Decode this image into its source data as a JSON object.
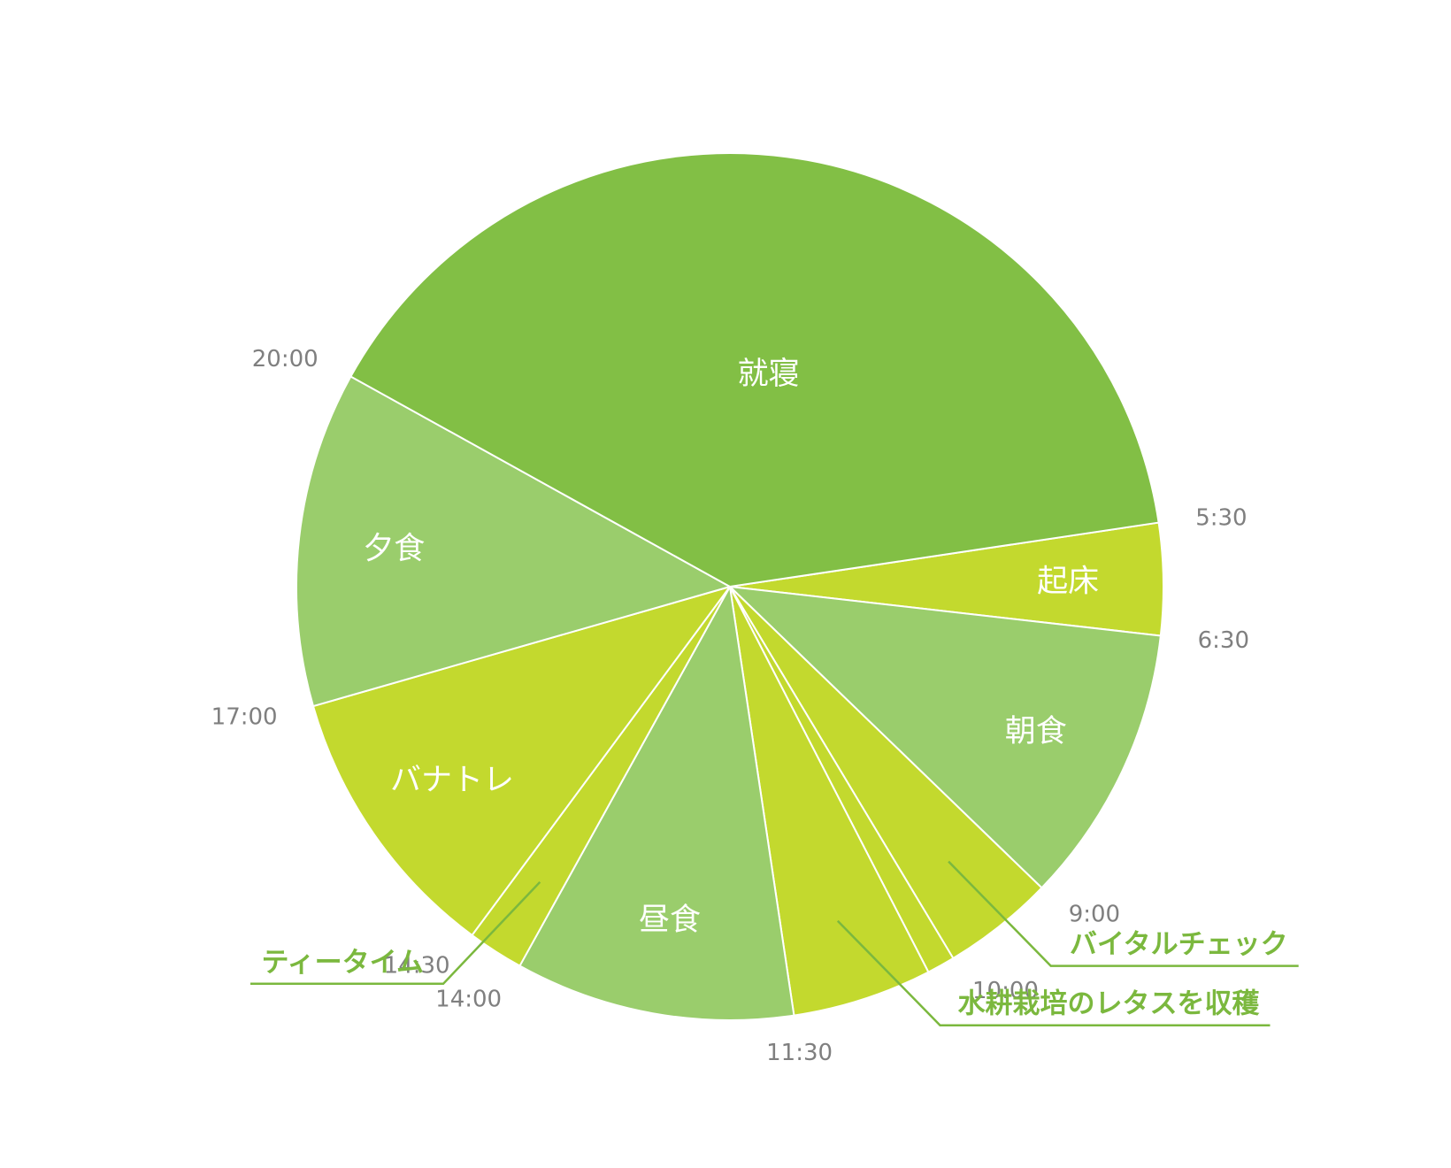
{
  "chart_data": {
    "type": "pie",
    "start_time": "5:30",
    "segments": [
      {
        "label": "起床",
        "start": "5:30",
        "end": "6:30",
        "hours": 1,
        "color": "#c3d92e"
      },
      {
        "label": "朝食",
        "start": "6:30",
        "end": "9:00",
        "hours": 2.5,
        "color": "#9acd6c"
      },
      {
        "label": "バイタルチェック",
        "start": "9:00",
        "end": "10:00",
        "hours": 1,
        "color": "#c3d92e"
      },
      {
        "label": "",
        "start": "10:00",
        "end": "10:15",
        "hours": 0.25,
        "color": "#c3d92e"
      },
      {
        "label": "水耕栽培のレタスを収穫",
        "start": "10:15",
        "end": "11:30",
        "hours": 1.25,
        "color": "#c3d92e"
      },
      {
        "label": "昼食",
        "start": "11:30",
        "end": "14:00",
        "hours": 2.5,
        "color": "#9acd6c"
      },
      {
        "label": "ティータイム",
        "start": "14:00",
        "end": "14:30",
        "hours": 0.5,
        "color": "#c3d92e"
      },
      {
        "label": "バナトレ",
        "start": "14:30",
        "end": "17:00",
        "hours": 2.5,
        "color": "#c3d92e"
      },
      {
        "label": "夕食",
        "start": "17:00",
        "end": "20:00",
        "hours": 3,
        "color": "#9acd6c"
      },
      {
        "label": "就寝",
        "start": "20:00",
        "end": "5:30",
        "hours": 9.5,
        "color": "#82bf45"
      }
    ],
    "inside_labels": [
      "起床",
      "朝食",
      "昼食",
      "バナトレ",
      "夕食",
      "就寝"
    ],
    "time_labels": [
      "5:30",
      "6:30",
      "9:00",
      "10:00",
      "11:30",
      "14:00",
      "14:30",
      "17:00",
      "20:00"
    ],
    "callouts": [
      {
        "label": "バイタルチェック",
        "segment": "9:00-10:00"
      },
      {
        "label": "水耕栽培のレタスを収穫",
        "segment": "10:15-11:30"
      },
      {
        "label": "ティータイム",
        "segment": "14:00-14:30"
      }
    ],
    "label_color": "#ffffff",
    "time_label_color": "#7f7f7f",
    "callout_color": "#7bb83e",
    "legend": "none"
  }
}
